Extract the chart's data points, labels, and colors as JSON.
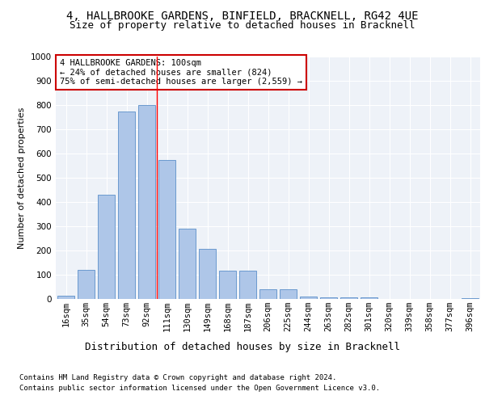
{
  "title1": "4, HALLBROOKE GARDENS, BINFIELD, BRACKNELL, RG42 4UE",
  "title2": "Size of property relative to detached houses in Bracknell",
  "xlabel": "Distribution of detached houses by size in Bracknell",
  "ylabel": "Number of detached properties",
  "categories": [
    "16sqm",
    "35sqm",
    "54sqm",
    "73sqm",
    "92sqm",
    "111sqm",
    "130sqm",
    "149sqm",
    "168sqm",
    "187sqm",
    "206sqm",
    "225sqm",
    "244sqm",
    "263sqm",
    "282sqm",
    "301sqm",
    "320sqm",
    "339sqm",
    "358sqm",
    "377sqm",
    "396sqm"
  ],
  "values": [
    15,
    120,
    430,
    775,
    800,
    575,
    290,
    208,
    118,
    118,
    40,
    40,
    10,
    8,
    8,
    7,
    0,
    0,
    0,
    0,
    5
  ],
  "bar_color": "#aec6e8",
  "bar_edge_color": "#5b8fc9",
  "background_color": "#eef2f8",
  "grid_color": "#ffffff",
  "annotation_text": "4 HALLBROOKE GARDENS: 100sqm\n← 24% of detached houses are smaller (824)\n75% of semi-detached houses are larger (2,559) →",
  "annotation_box_color": "#ffffff",
  "annotation_box_edge_color": "#cc0000",
  "footnote1": "Contains HM Land Registry data © Crown copyright and database right 2024.",
  "footnote2": "Contains public sector information licensed under the Open Government Licence v3.0.",
  "ylim": [
    0,
    1000
  ],
  "yticks": [
    0,
    100,
    200,
    300,
    400,
    500,
    600,
    700,
    800,
    900,
    1000
  ],
  "title1_fontsize": 10,
  "title2_fontsize": 9,
  "ylabel_fontsize": 8,
  "xlabel_fontsize": 9,
  "tick_fontsize": 7.5,
  "annot_fontsize": 7.5,
  "footnote_fontsize": 6.5,
  "property_line_index": 4.5
}
